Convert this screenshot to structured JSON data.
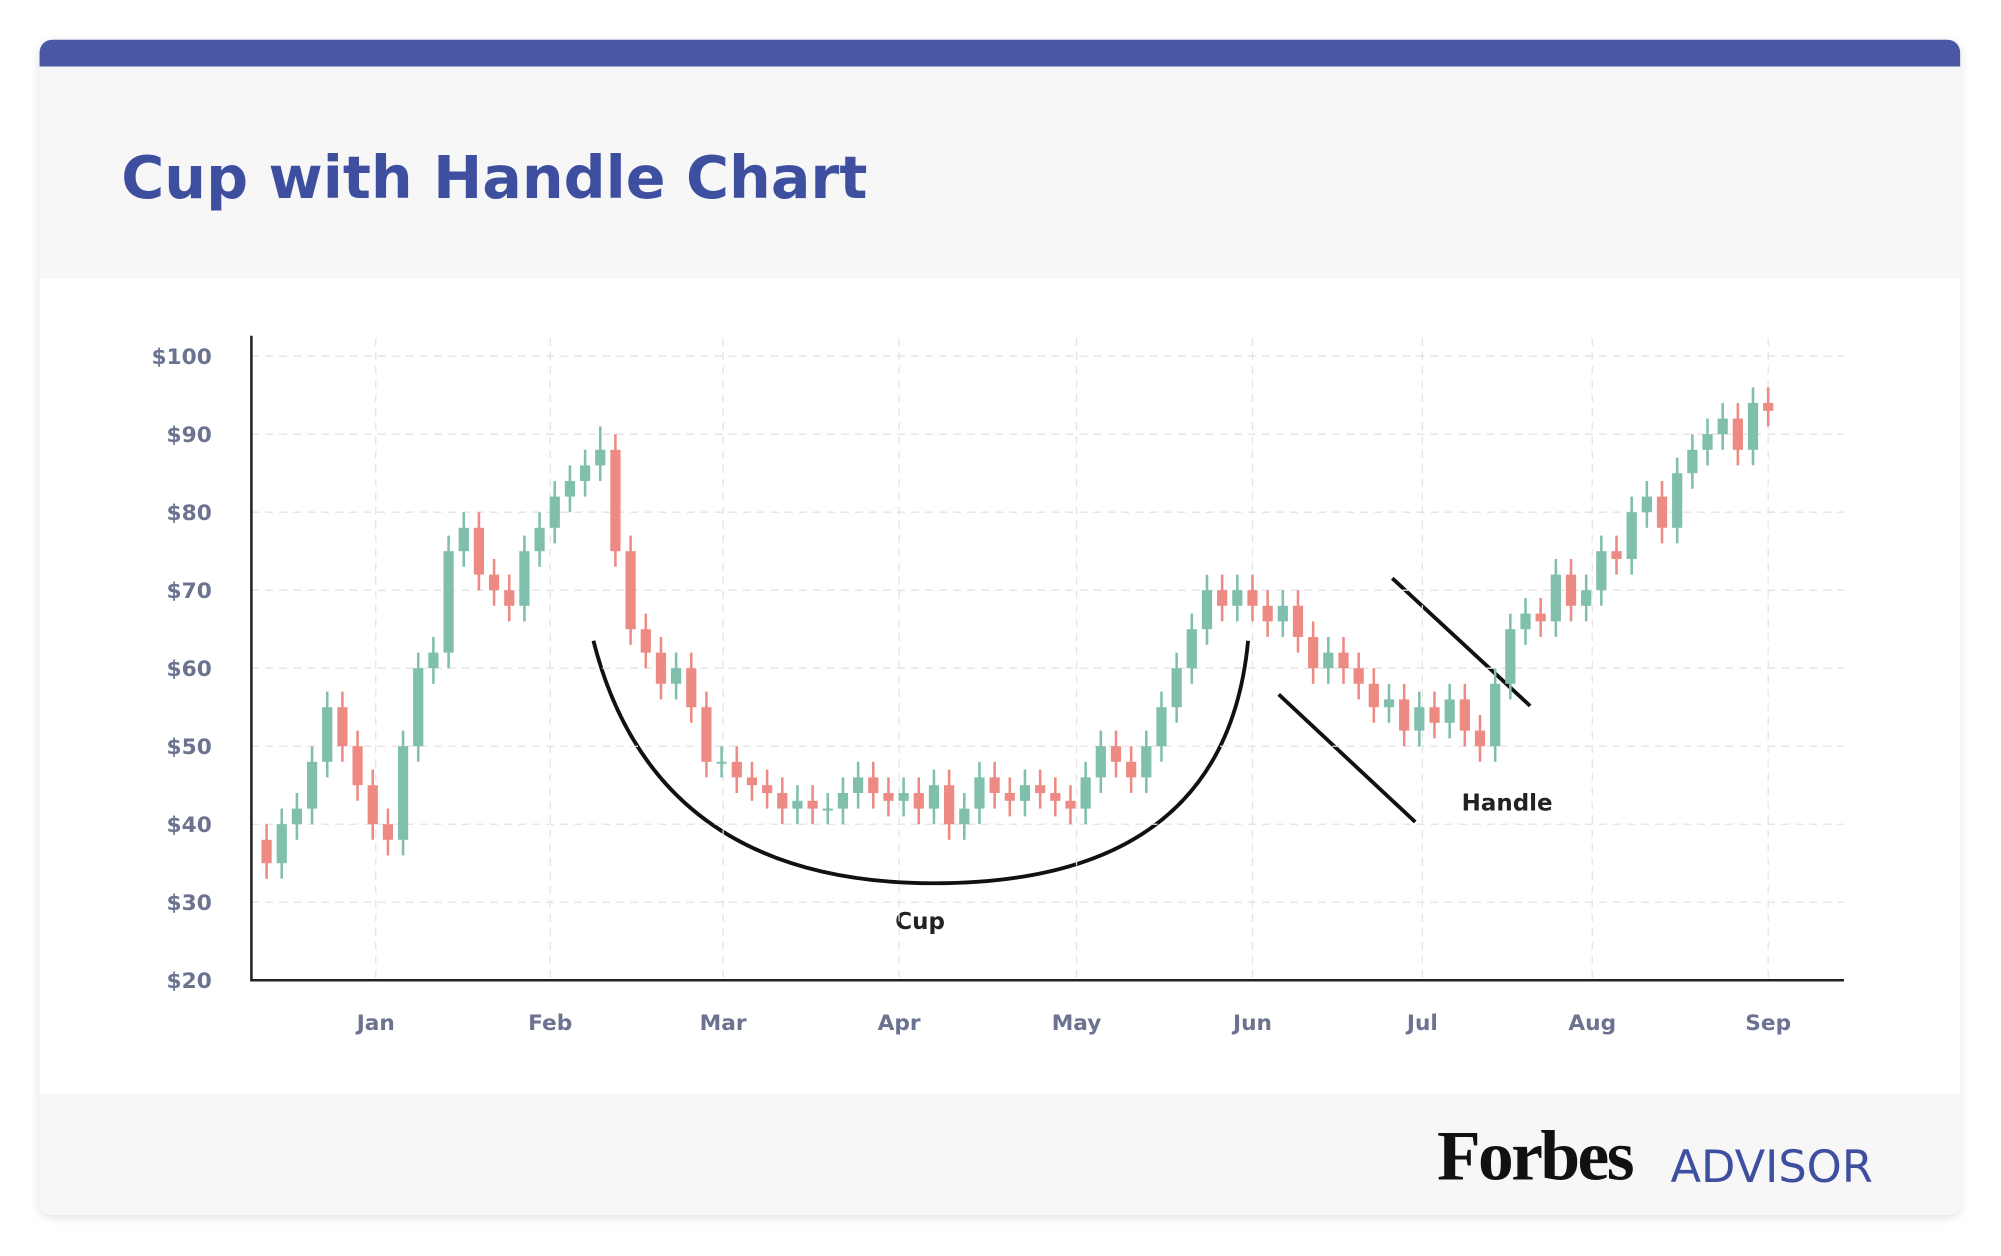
{
  "chart_data": {
    "type": "candlestick",
    "title": "Cup with Handle Chart",
    "x": [
      1,
      2,
      3,
      4,
      5,
      6,
      7,
      8,
      9,
      10,
      11,
      12,
      13,
      14,
      15,
      16,
      17,
      18,
      19,
      20,
      21,
      22,
      23,
      24,
      25,
      26,
      27,
      28,
      29,
      30,
      31,
      32,
      33,
      34,
      35,
      36,
      37,
      38,
      39,
      40,
      41,
      42,
      43,
      44,
      45,
      46,
      47,
      48,
      49,
      50,
      51,
      52,
      53,
      54,
      55,
      56,
      57,
      58,
      59,
      60,
      61,
      62,
      63,
      64,
      65,
      66,
      67,
      68,
      69,
      70,
      71,
      72,
      73,
      74,
      75,
      76,
      77,
      78,
      79,
      80,
      81,
      82,
      83,
      84,
      85,
      86,
      87,
      88,
      89,
      90,
      91,
      92,
      93,
      94,
      95,
      96,
      97,
      98,
      99,
      100
    ],
    "open": [
      38,
      35,
      40,
      42,
      48,
      55,
      50,
      45,
      40,
      38,
      50,
      60,
      62,
      75,
      78,
      72,
      70,
      68,
      75,
      78,
      82,
      84,
      86,
      88,
      75,
      65,
      62,
      58,
      60,
      55,
      48,
      48,
      46,
      45,
      44,
      42,
      43,
      42,
      42,
      44,
      46,
      44,
      43,
      44,
      42,
      45,
      40,
      42,
      46,
      44,
      43,
      45,
      44,
      43,
      42,
      46,
      50,
      48,
      46,
      50,
      55,
      60,
      65,
      70,
      68,
      70,
      68,
      66,
      68,
      64,
      60,
      62,
      60,
      58,
      55,
      56,
      52,
      55,
      53,
      56,
      52,
      50,
      58,
      65,
      67,
      66,
      72,
      68,
      70,
      75,
      74,
      80,
      82,
      78,
      85,
      88,
      90,
      92,
      88,
      94
    ],
    "high": [
      40,
      42,
      44,
      50,
      57,
      57,
      52,
      47,
      42,
      52,
      62,
      64,
      77,
      80,
      80,
      74,
      72,
      77,
      80,
      84,
      86,
      88,
      91,
      90,
      77,
      67,
      64,
      62,
      62,
      57,
      50,
      50,
      48,
      47,
      46,
      45,
      45,
      44,
      46,
      48,
      48,
      46,
      46,
      46,
      47,
      47,
      44,
      48,
      48,
      46,
      47,
      47,
      46,
      45,
      48,
      52,
      52,
      50,
      52,
      57,
      62,
      67,
      72,
      72,
      72,
      72,
      70,
      70,
      70,
      66,
      64,
      64,
      62,
      60,
      58,
      58,
      57,
      57,
      58,
      58,
      54,
      60,
      67,
      69,
      69,
      74,
      74,
      72,
      77,
      77,
      82,
      84,
      84,
      87,
      90,
      92,
      94,
      94,
      96,
      96
    ],
    "low": [
      33,
      33,
      38,
      40,
      46,
      48,
      43,
      38,
      36,
      36,
      48,
      58,
      60,
      73,
      70,
      68,
      66,
      66,
      73,
      76,
      80,
      82,
      84,
      73,
      63,
      60,
      56,
      56,
      53,
      46,
      46,
      44,
      43,
      42,
      40,
      40,
      40,
      40,
      40,
      42,
      42,
      41,
      41,
      40,
      40,
      38,
      38,
      40,
      42,
      41,
      41,
      42,
      41,
      40,
      40,
      44,
      46,
      44,
      44,
      48,
      53,
      58,
      63,
      66,
      66,
      66,
      64,
      64,
      62,
      58,
      58,
      58,
      56,
      53,
      53,
      50,
      50,
      51,
      51,
      50,
      48,
      48,
      56,
      63,
      64,
      64,
      66,
      66,
      68,
      72,
      72,
      78,
      76,
      76,
      83,
      86,
      88,
      86,
      86,
      91
    ],
    "close": [
      35,
      40,
      42,
      48,
      55,
      50,
      45,
      40,
      38,
      50,
      60,
      62,
      75,
      78,
      72,
      70,
      68,
      75,
      78,
      82,
      84,
      86,
      88,
      75,
      65,
      62,
      58,
      60,
      55,
      48,
      48,
      46,
      45,
      44,
      42,
      43,
      42,
      42,
      44,
      46,
      44,
      43,
      44,
      42,
      45,
      40,
      42,
      46,
      44,
      43,
      45,
      44,
      43,
      42,
      46,
      50,
      48,
      46,
      50,
      55,
      60,
      65,
      70,
      68,
      70,
      68,
      66,
      68,
      64,
      60,
      62,
      60,
      58,
      55,
      56,
      52,
      55,
      53,
      56,
      52,
      50,
      58,
      65,
      67,
      66,
      72,
      68,
      70,
      75,
      74,
      80,
      82,
      78,
      85,
      88,
      90,
      92,
      88,
      94,
      93
    ],
    "up_color": "#7fbfab",
    "down_color": "#ee8a84",
    "xlim": [
      0,
      105
    ],
    "xticks": [
      {
        "value": 8.2,
        "label": "Jan"
      },
      {
        "value": 19.7,
        "label": "Feb"
      },
      {
        "value": 31.1,
        "label": "Mar"
      },
      {
        "value": 42.7,
        "label": "Apr"
      },
      {
        "value": 54.4,
        "label": "May"
      },
      {
        "value": 66,
        "label": "Jun"
      },
      {
        "value": 77.2,
        "label": "Jul"
      },
      {
        "value": 88.4,
        "label": "Aug"
      },
      {
        "value": 100,
        "label": "Sep"
      }
    ],
    "ylim": [
      20,
      100
    ],
    "yticks": [
      {
        "value": 20,
        "label": "$20"
      },
      {
        "value": 30,
        "label": "$30"
      },
      {
        "value": 40,
        "label": "$40"
      },
      {
        "value": 50,
        "label": "$50"
      },
      {
        "value": 60,
        "label": "$60"
      },
      {
        "value": 70,
        "label": "$70"
      },
      {
        "value": 80,
        "label": "$80"
      },
      {
        "value": 90,
        "label": "$90"
      },
      {
        "value": 100,
        "label": "$100"
      }
    ],
    "grid": true,
    "annotations": [
      "Cup",
      "Handle"
    ]
  },
  "footer": {
    "brand": "Forbes",
    "sub_brand": "ADVISOR"
  }
}
